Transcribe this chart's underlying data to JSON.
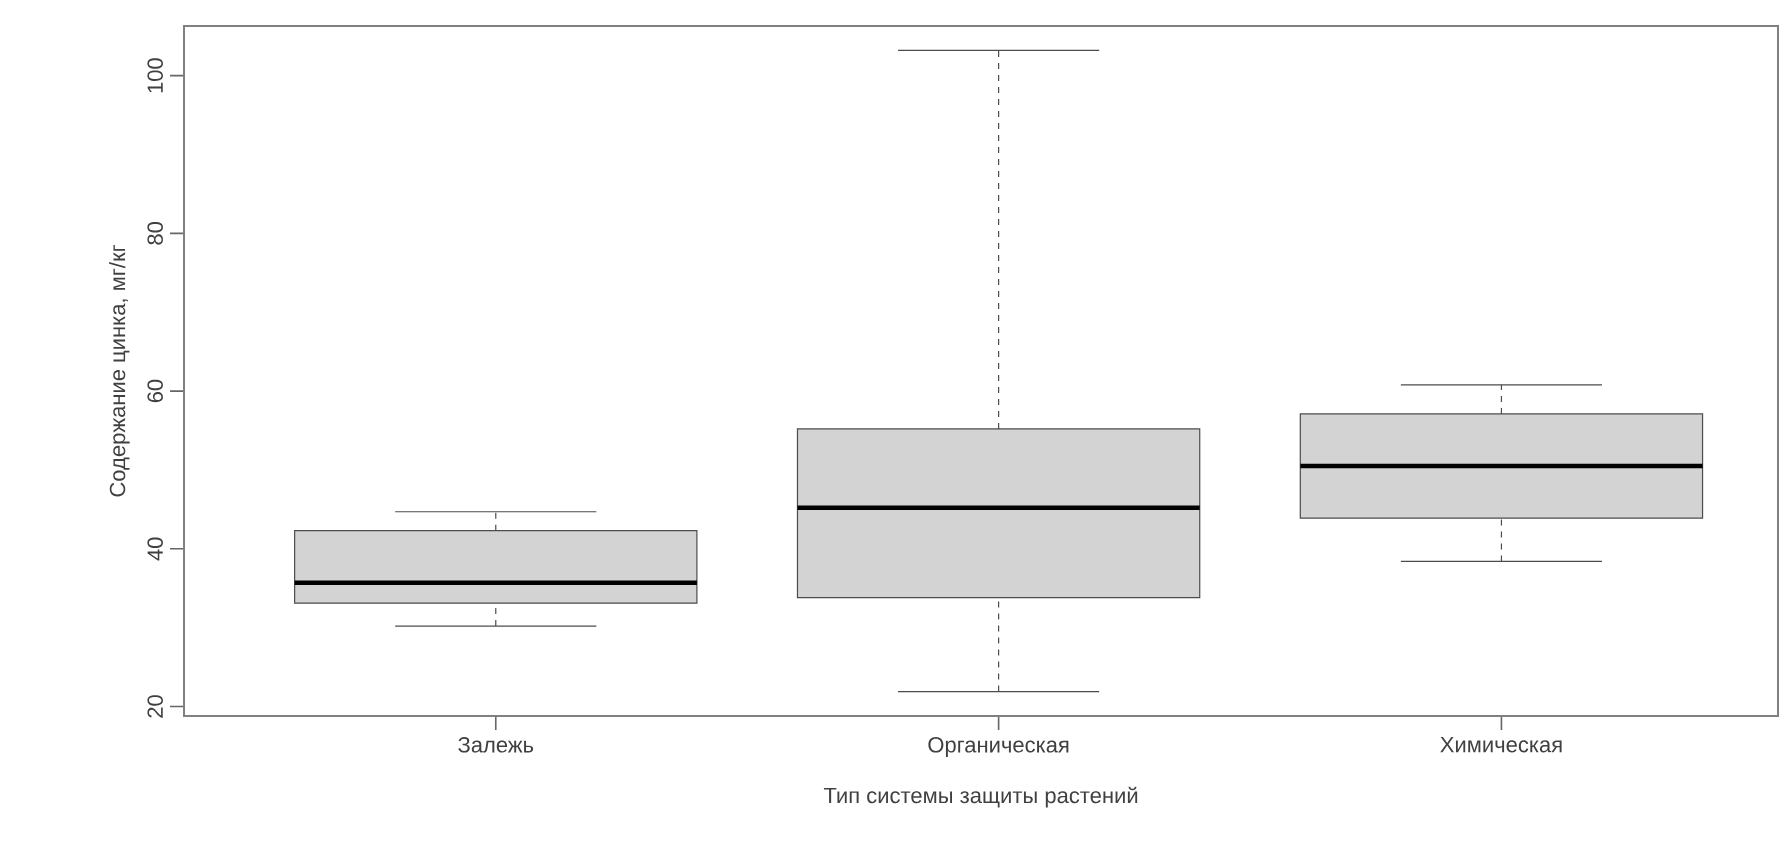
{
  "chart_data": {
    "type": "box",
    "xlabel": "Тип системы защиты растений",
    "ylabel": "Содержание цинка, мг/кг",
    "categories": [
      "Залежь",
      "Органическая",
      "Химическая"
    ],
    "ylim": [
      18.8,
      106.3
    ],
    "yticks": [
      20,
      40,
      60,
      80,
      100
    ],
    "series": [
      {
        "color": "#d3d3d3",
        "boxes": [
          {
            "low": 30.2,
            "q1": 33.1,
            "median": 35.7,
            "q3": 42.3,
            "high": 44.7
          },
          {
            "low": 21.9,
            "q1": 33.8,
            "median": 45.2,
            "q3": 55.2,
            "high": 103.2
          },
          {
            "low": 38.4,
            "q1": 43.9,
            "median": 50.5,
            "q3": 57.1,
            "high": 60.8
          }
        ]
      }
    ]
  }
}
